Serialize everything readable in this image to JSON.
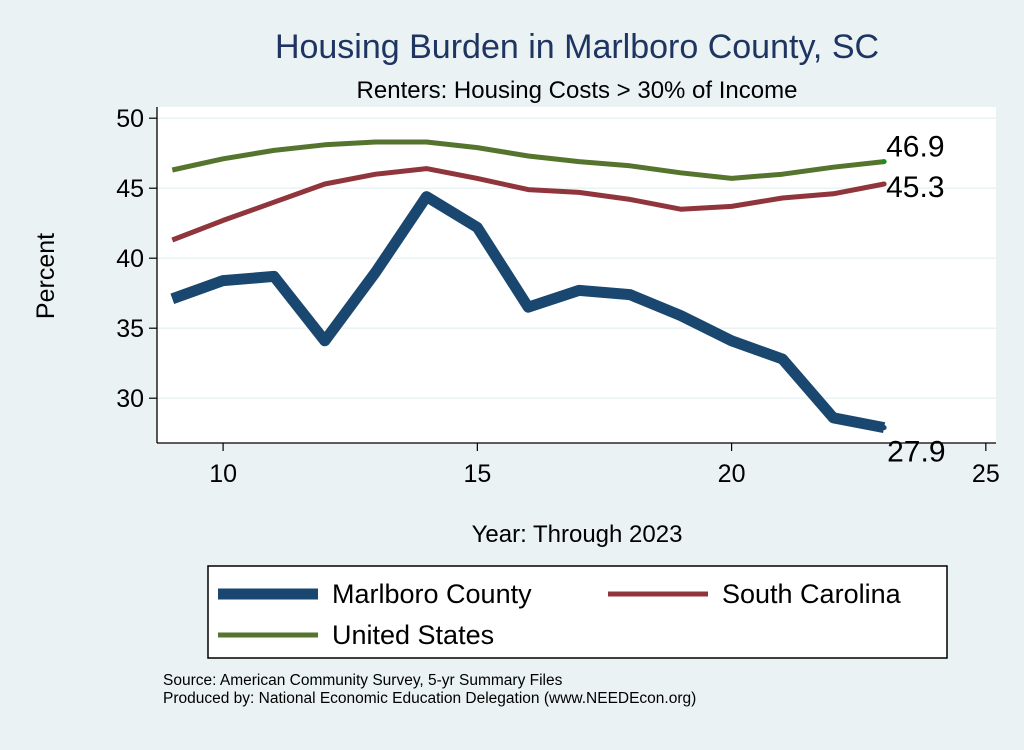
{
  "chart_data": {
    "type": "line",
    "title": "Housing Burden in Marlboro County, SC",
    "subtitle": "Renters: Housing Costs > 30% of Income",
    "xlabel": "Year: Through 2023",
    "ylabel": "Percent",
    "xlim": [
      8.7,
      25.2
    ],
    "ylim": [
      26.8,
      50.8
    ],
    "x_ticks": [
      10,
      15,
      20,
      25
    ],
    "y_ticks": [
      30,
      35,
      40,
      45,
      50
    ],
    "grid": true,
    "legend_position": "bottom",
    "x": [
      9,
      10,
      11,
      12,
      13,
      14,
      15,
      16,
      17,
      18,
      19,
      20,
      21,
      22,
      23
    ],
    "series": [
      {
        "name": "Marlboro County",
        "color": "#1a476f",
        "values": [
          37.1,
          38.4,
          38.7,
          34.1,
          39.0,
          44.4,
          42.2,
          36.5,
          37.7,
          37.4,
          35.9,
          34.1,
          32.8,
          28.6,
          27.9
        ],
        "end_label": "27.9"
      },
      {
        "name": "South Carolina",
        "color": "#90353b",
        "values": [
          41.3,
          42.7,
          44.0,
          45.3,
          46.0,
          46.4,
          45.7,
          44.9,
          44.7,
          44.2,
          43.5,
          43.7,
          44.3,
          44.6,
          45.3
        ],
        "end_label": "45.3"
      },
      {
        "name": "United States",
        "color": "#55752f",
        "values": [
          46.3,
          47.1,
          47.7,
          48.1,
          48.3,
          48.3,
          47.9,
          47.3,
          46.9,
          46.6,
          46.1,
          45.7,
          46.0,
          46.5,
          46.9
        ],
        "end_label": "46.9"
      }
    ]
  },
  "footer": {
    "source": "Source: American Community Survey, 5-yr Summary Files",
    "produced_by": "Produced by: National Economic Education Delegation (www.NEEDEcon.org)"
  }
}
